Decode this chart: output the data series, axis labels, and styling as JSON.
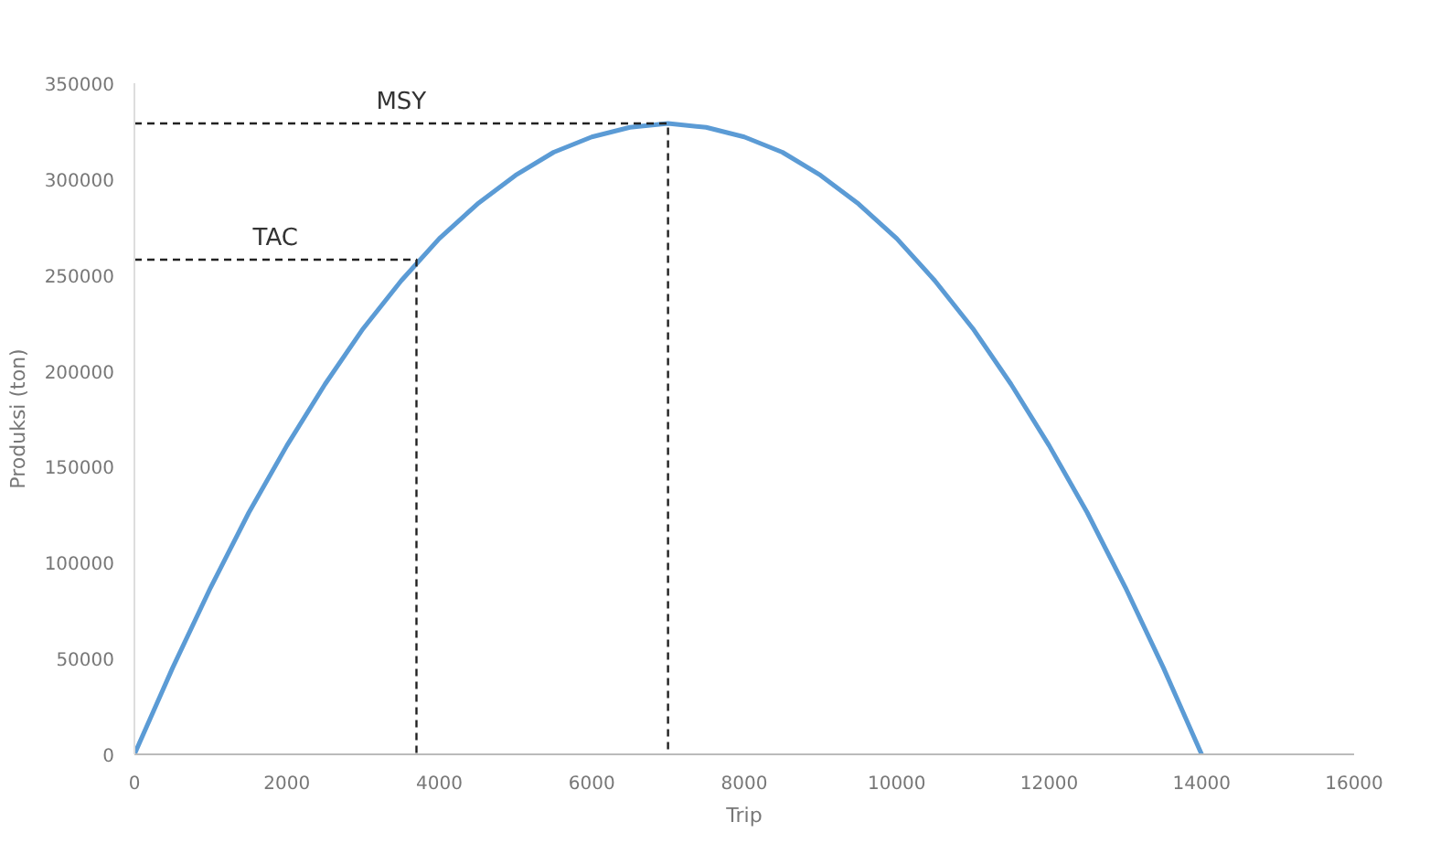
{
  "chart_data": {
    "type": "line",
    "xlabel": "Trip",
    "ylabel": "Produksi (ton)",
    "x": [
      0,
      500,
      1000,
      1500,
      2000,
      2500,
      3000,
      3500,
      4000,
      4500,
      5000,
      5500,
      6000,
      6500,
      7000,
      7500,
      8000,
      8500,
      9000,
      9500,
      10000,
      10500,
      11000,
      11500,
      12000,
      12500,
      13000,
      13500,
      14000
    ],
    "series": [
      {
        "color": "#5b9bd5",
        "line_style": "solid",
        "values": [
          0,
          45000,
          87000,
          126000,
          161000,
          193000,
          222000,
          247000,
          269000,
          287000,
          302000,
          314000,
          322000,
          327000,
          329000,
          327000,
          322000,
          314000,
          302000,
          287000,
          269000,
          247000,
          222000,
          193000,
          161000,
          126000,
          87000,
          45000,
          0
        ]
      },
      {
        "color": "#222222",
        "line_style": "dashed",
        "x": [
          0,
          7000,
          7000
        ],
        "values": [
          329000,
          329000,
          0
        ]
      },
      {
        "color": "#222222",
        "line_style": "dashed",
        "x": [
          0,
          3700,
          3700
        ],
        "values": [
          258000,
          258000,
          0
        ]
      }
    ],
    "annotations": [
      "MSY",
      "TAC"
    ],
    "xlim": [
      0,
      16000
    ],
    "ylim": [
      0,
      350000
    ],
    "xticks": [
      0,
      2000,
      4000,
      6000,
      8000,
      10000,
      12000,
      14000,
      16000
    ],
    "yticks": [
      0,
      50000,
      100000,
      150000,
      200000,
      250000,
      300000,
      350000
    ],
    "grid": false,
    "marker": "none"
  }
}
